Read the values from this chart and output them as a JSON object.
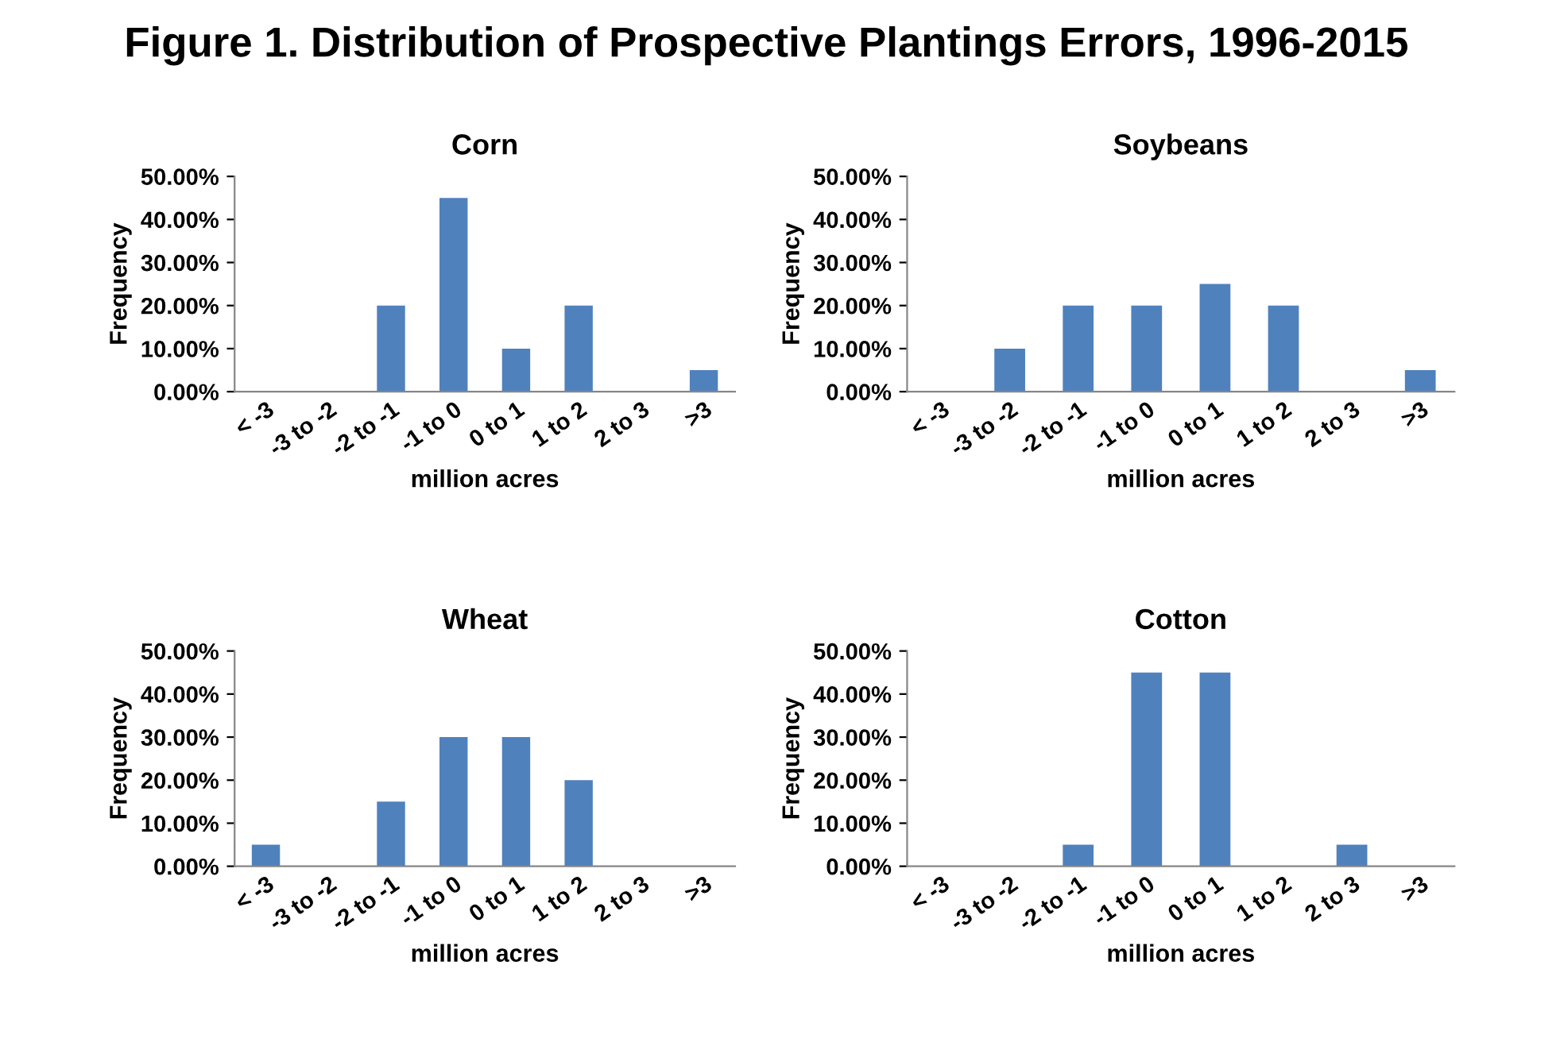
{
  "chart_data": [
    {
      "type": "bar",
      "title": "Corn",
      "annotations": [
        "Figure 1. Distribution of Prospective Plantings Errors, 1996-2015"
      ],
      "xlabel": "million acres",
      "ylabel": "Frequency",
      "categories": [
        "< -3",
        "-3 to -2",
        "-2 to -1",
        "-1 to 0",
        "0 to 1",
        "1 to 2",
        "2 to 3",
        ">3"
      ],
      "values": [
        0,
        0,
        20,
        45,
        10,
        20,
        0,
        5
      ],
      "color": "#4f81bd",
      "ylim": [
        0,
        50
      ],
      "yticks": [
        {
          "value": 0,
          "label": "0.00%"
        },
        {
          "value": 10,
          "label": "10.00%"
        },
        {
          "value": 20,
          "label": "20.00%"
        },
        {
          "value": 30,
          "label": "30.00%"
        },
        {
          "value": 40,
          "label": "40.00%"
        },
        {
          "value": 50,
          "label": "50.00%"
        }
      ],
      "grid": false,
      "legend": false
    },
    {
      "type": "bar",
      "title": "Soybeans",
      "xlabel": "million acres",
      "ylabel": "Frequency",
      "categories": [
        "< -3",
        "-3 to -2",
        "-2 to -1",
        "-1 to 0",
        "0 to 1",
        "1 to 2",
        "2 to 3",
        ">3"
      ],
      "values": [
        0,
        10,
        20,
        20,
        25,
        20,
        0,
        5
      ],
      "color": "#4f81bd",
      "ylim": [
        0,
        50
      ],
      "yticks": [
        {
          "value": 0,
          "label": "0.00%"
        },
        {
          "value": 10,
          "label": "10.00%"
        },
        {
          "value": 20,
          "label": "20.00%"
        },
        {
          "value": 30,
          "label": "30.00%"
        },
        {
          "value": 40,
          "label": "40.00%"
        },
        {
          "value": 50,
          "label": "50.00%"
        }
      ],
      "grid": false,
      "legend": false
    },
    {
      "type": "bar",
      "title": "Wheat",
      "xlabel": "million acres",
      "ylabel": "Frequency",
      "categories": [
        "< -3",
        "-3 to -2",
        "-2 to -1",
        "-1 to 0",
        "0 to 1",
        "1 to 2",
        "2 to 3",
        ">3"
      ],
      "values": [
        5,
        0,
        15,
        30,
        30,
        20,
        0,
        0
      ],
      "color": "#4f81bd",
      "ylim": [
        0,
        50
      ],
      "yticks": [
        {
          "value": 0,
          "label": "0.00%"
        },
        {
          "value": 10,
          "label": "10.00%"
        },
        {
          "value": 20,
          "label": "20.00%"
        },
        {
          "value": 30,
          "label": "30.00%"
        },
        {
          "value": 40,
          "label": "40.00%"
        },
        {
          "value": 50,
          "label": "50.00%"
        }
      ],
      "grid": false,
      "legend": false
    },
    {
      "type": "bar",
      "title": "Cotton",
      "xlabel": "million acres",
      "ylabel": "Frequency",
      "categories": [
        "< -3",
        "-3 to -2",
        "-2 to -1",
        "-1 to 0",
        "0 to 1",
        "1 to 2",
        "2 to 3",
        ">3"
      ],
      "values": [
        0,
        0,
        5,
        45,
        45,
        0,
        5,
        0
      ],
      "color": "#4f81bd",
      "ylim": [
        0,
        50
      ],
      "yticks": [
        {
          "value": 0,
          "label": "0.00%"
        },
        {
          "value": 10,
          "label": "10.00%"
        },
        {
          "value": 20,
          "label": "20.00%"
        },
        {
          "value": 30,
          "label": "30.00%"
        },
        {
          "value": 40,
          "label": "40.00%"
        },
        {
          "value": 50,
          "label": "50.00%"
        }
      ],
      "grid": false,
      "legend": false
    }
  ]
}
